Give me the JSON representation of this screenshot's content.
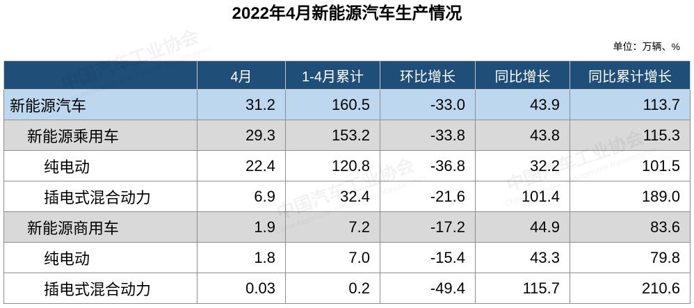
{
  "chart_data": {
    "type": "table",
    "title": "2022年4月新能源汽车生产情况",
    "unit": "单位：万辆、%",
    "columns": [
      "4月",
      "1-4月累计",
      "环比增长",
      "同比增长",
      "同比累计增长"
    ],
    "rows": [
      {
        "label": "新能源汽车",
        "values": [
          "31.2",
          "160.5",
          "-33.0",
          "43.9",
          "113.7"
        ]
      },
      {
        "label": "新能源乘用车",
        "values": [
          "29.3",
          "153.2",
          "-33.8",
          "43.8",
          "115.3"
        ]
      },
      {
        "label": "纯电动",
        "values": [
          "22.4",
          "120.8",
          "-36.8",
          "32.2",
          "101.5"
        ]
      },
      {
        "label": "插电式混合动力",
        "values": [
          "6.9",
          "32.4",
          "-21.6",
          "101.4",
          "189.0"
        ]
      },
      {
        "label": "新能源商用车",
        "values": [
          "1.9",
          "7.2",
          "-17.2",
          "44.9",
          "83.6"
        ]
      },
      {
        "label": "纯电动",
        "values": [
          "1.8",
          "7.0",
          "-15.4",
          "43.3",
          "79.8"
        ]
      },
      {
        "label": "插电式混合动力",
        "values": [
          "0.03",
          "0.2",
          "-49.4",
          "115.7",
          "210.6"
        ]
      }
    ]
  },
  "watermark": {
    "cn": "中国汽车工业协会",
    "en": "China Association of Automobile Manufacturers"
  },
  "colors": {
    "header_bg": "#1f4e79",
    "header_text": "#ffffff",
    "total_row_bg": "#bdd7ee",
    "subtotal_row_bg": "#d9d9d9",
    "item_row_bg": "#ffffff"
  }
}
